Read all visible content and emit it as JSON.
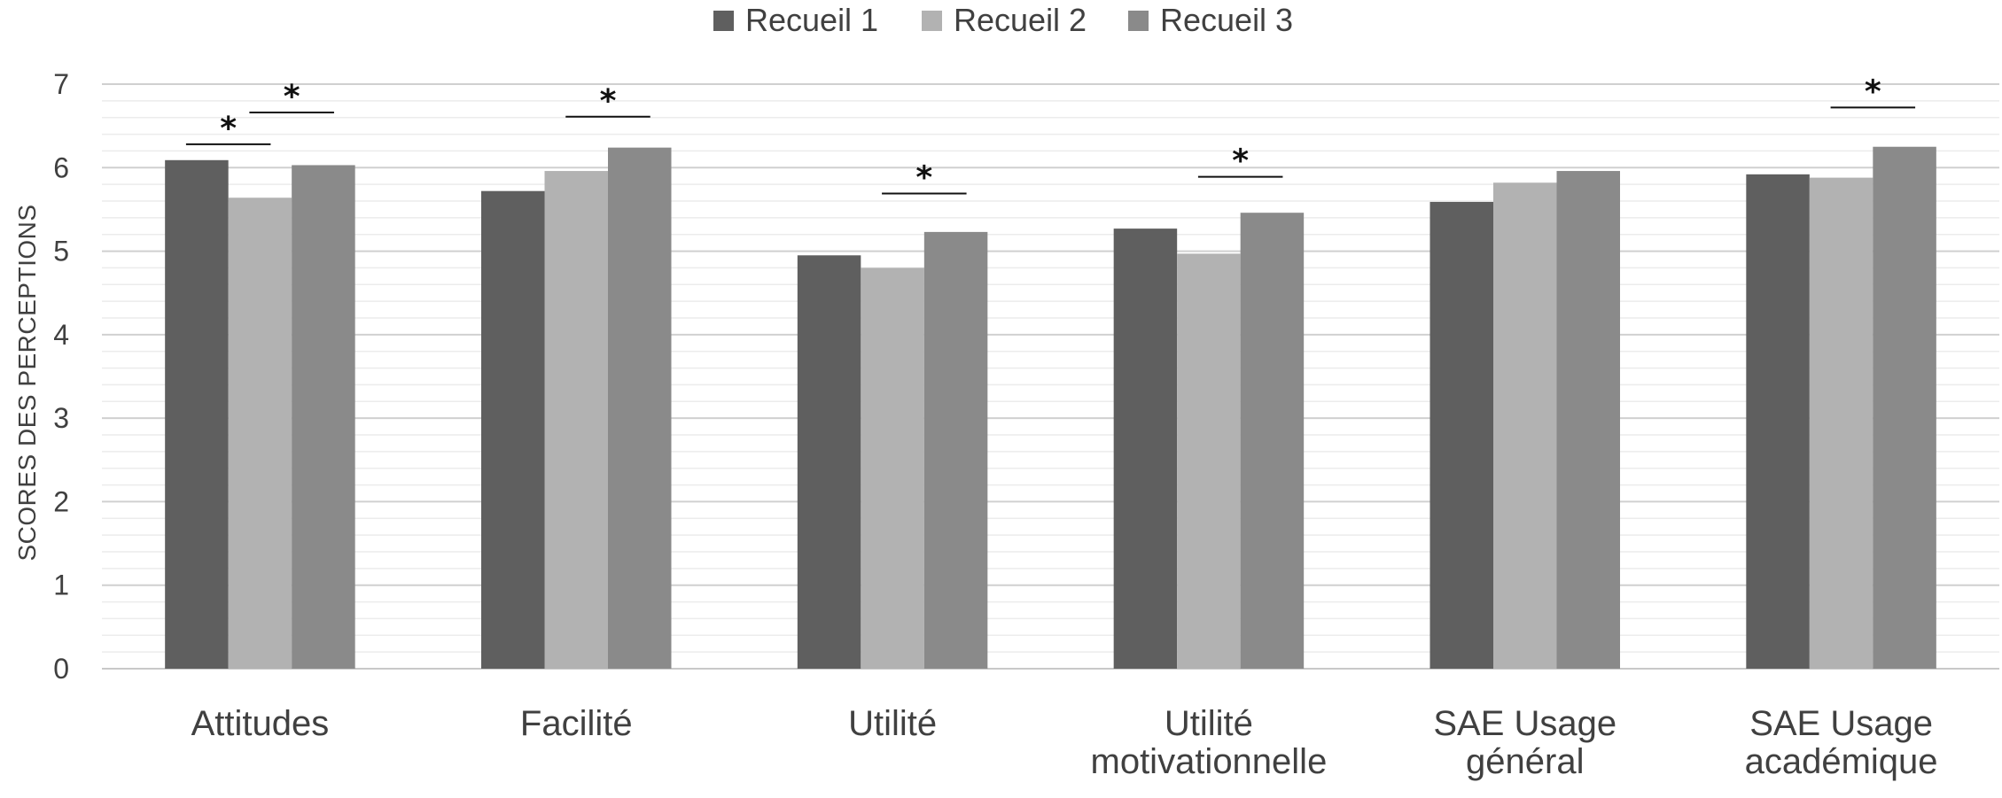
{
  "chart_data": {
    "type": "bar",
    "title": "",
    "xlabel": "",
    "ylabel": "SCORES DES PERCEPTIONS",
    "ylim": [
      0,
      7
    ],
    "yticks": [
      0,
      1,
      2,
      3,
      4,
      5,
      6,
      7
    ],
    "grid": true,
    "legend_position": "top-center",
    "categories": [
      [
        "Attitudes"
      ],
      [
        "Facilité"
      ],
      [
        "Utilité"
      ],
      [
        "Utilité",
        "motivationnelle"
      ],
      [
        "SAE Usage",
        "général"
      ],
      [
        "SAE Usage",
        "académique"
      ]
    ],
    "series": [
      {
        "name": "Recueil 1",
        "color": "#5f5f5f",
        "values": [
          6.09,
          5.72,
          4.95,
          5.27,
          5.59,
          5.92
        ]
      },
      {
        "name": "Recueil 2",
        "color": "#b2b2b2",
        "values": [
          5.64,
          5.96,
          4.8,
          4.97,
          5.82,
          5.88
        ]
      },
      {
        "name": "Recueil 3",
        "color": "#8a8a8a",
        "values": [
          6.03,
          6.24,
          5.23,
          5.46,
          5.96,
          6.25
        ]
      }
    ],
    "significance": [
      {
        "category": 0,
        "from_series": 0,
        "to_series": 1,
        "y": 6.28,
        "label": "*"
      },
      {
        "category": 0,
        "from_series": 1,
        "to_series": 2,
        "y": 6.66,
        "label": "*"
      },
      {
        "category": 1,
        "from_series": 1,
        "to_series": 2,
        "y": 6.61,
        "label": "*"
      },
      {
        "category": 2,
        "from_series": 1,
        "to_series": 2,
        "y": 5.69,
        "label": "*"
      },
      {
        "category": 3,
        "from_series": 1,
        "to_series": 2,
        "y": 5.89,
        "label": "*"
      },
      {
        "category": 5,
        "from_series": 1,
        "to_series": 2,
        "y": 6.72,
        "label": "*"
      }
    ]
  }
}
